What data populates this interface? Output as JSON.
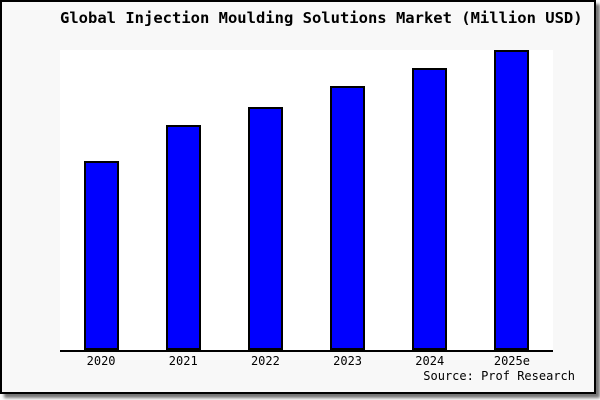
{
  "title": "Global Injection Moulding Solutions Market (Million USD)",
  "source_note": "Source: Prof Research",
  "chart_data": {
    "type": "bar",
    "title": "Global Injection Moulding Solutions Market (Million USD)",
    "categories": [
      "2020",
      "2021",
      "2022",
      "2023",
      "2024",
      "2025e"
    ],
    "values": [
      63,
      75,
      81,
      88,
      94,
      100
    ],
    "value_note": "y-axis has no tick labels; values are relative bar heights as percent of the tallest (2025e) bar",
    "xlabel": "",
    "ylabel": "",
    "ylim": [
      0,
      100
    ],
    "grid": false,
    "legend": false,
    "bar_color": "#0000ff",
    "bar_border_color": "#000000"
  },
  "colors": {
    "card_background": "#f8f8f8",
    "plot_background": "#ffffff",
    "axis": "#000000",
    "text": "#000000",
    "card_border": "#000000"
  }
}
